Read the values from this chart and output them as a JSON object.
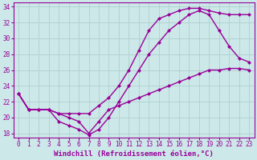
{
  "xlabel": "Windchill (Refroidissement éolien,°C)",
  "bg_color": "#cce8e8",
  "line_color": "#990099",
  "grid_color": "#aacccc",
  "ylim": [
    17.5,
    34.5
  ],
  "xlim": [
    -0.5,
    23.5
  ],
  "yticks": [
    18,
    20,
    22,
    24,
    26,
    28,
    30,
    32,
    34
  ],
  "xticks": [
    0,
    1,
    2,
    3,
    4,
    5,
    6,
    7,
    8,
    9,
    10,
    11,
    12,
    13,
    14,
    15,
    16,
    17,
    18,
    19,
    20,
    21,
    22,
    23
  ],
  "curve1_x": [
    0,
    1,
    2,
    3,
    4,
    5,
    6,
    7,
    8,
    9,
    10,
    11,
    12,
    13,
    14,
    15,
    16,
    17,
    18,
    19,
    20,
    21,
    22,
    23
  ],
  "curve1_y": [
    23.0,
    21.0,
    21.0,
    21.0,
    20.5,
    20.0,
    19.5,
    18.0,
    19.5,
    21.0,
    21.5,
    22.0,
    22.5,
    23.0,
    23.5,
    24.0,
    24.5,
    25.0,
    25.5,
    26.0,
    26.0,
    26.2,
    26.2,
    26.0
  ],
  "curve2_x": [
    0,
    1,
    2,
    3,
    4,
    5,
    6,
    7,
    8,
    9,
    10,
    11,
    12,
    13,
    14,
    15,
    16,
    17,
    18,
    19,
    20,
    21,
    22,
    23
  ],
  "curve2_y": [
    23.0,
    21.0,
    21.0,
    21.0,
    19.5,
    19.0,
    18.5,
    17.8,
    18.5,
    20.0,
    22.0,
    24.0,
    26.0,
    28.0,
    29.5,
    31.0,
    32.0,
    33.0,
    33.5,
    33.0,
    31.0,
    29.0,
    27.5,
    27.0
  ],
  "curve3_x": [
    0,
    1,
    2,
    3,
    4,
    5,
    6,
    7,
    8,
    9,
    10,
    11,
    12,
    13,
    14,
    15,
    16,
    17,
    18,
    19,
    20,
    21,
    22,
    23
  ],
  "curve3_y": [
    23.0,
    21.0,
    21.0,
    21.0,
    20.5,
    20.5,
    20.5,
    20.5,
    21.5,
    22.5,
    24.0,
    26.0,
    28.5,
    31.0,
    32.5,
    33.0,
    33.5,
    33.8,
    33.8,
    33.5,
    33.2,
    33.0,
    33.0,
    33.0
  ],
  "markersize": 2.5,
  "linewidth": 1.0,
  "tick_fontsize": 5.5,
  "xlabel_fontsize": 6.5
}
